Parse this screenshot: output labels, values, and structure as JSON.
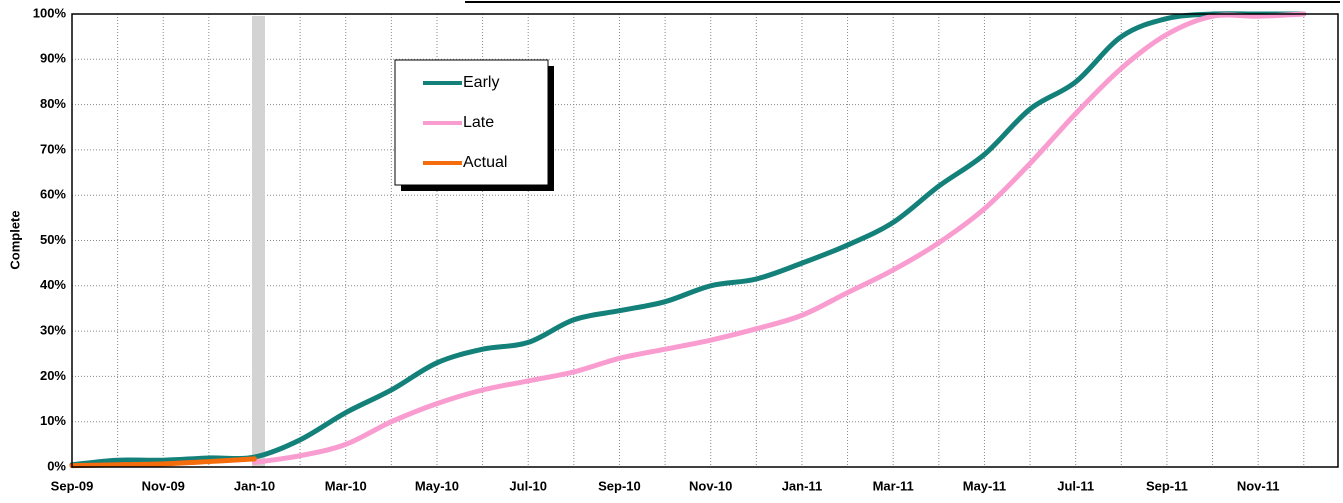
{
  "chart_data": {
    "type": "line",
    "y_label": "Complete",
    "categories": [
      "Sep-09",
      null,
      "Nov-09",
      null,
      "Jan-10",
      null,
      "Mar-10",
      null,
      "May-10",
      null,
      "Jul-10",
      null,
      "Sep-10",
      null,
      "Nov-10",
      null,
      "Jan-11",
      null,
      "Mar-11",
      null,
      "May-11",
      null,
      "Jul-11",
      null,
      "Sep-11",
      null,
      "Nov-11",
      null
    ],
    "series": [
      {
        "name": "Early",
        "color": "#138079",
        "values": [
          0.5,
          1.5,
          1.5,
          2,
          2.2,
          6,
          12,
          17,
          23,
          26,
          27.5,
          32.5,
          34.5,
          36.5,
          40,
          41.5,
          45,
          49,
          54,
          62,
          69,
          79,
          85,
          95,
          99,
          100,
          100,
          100
        ]
      },
      {
        "name": "Late",
        "color": "#f99dd0",
        "values": [
          null,
          null,
          null,
          null,
          1,
          2.5,
          5,
          10,
          14,
          17,
          19,
          21,
          24,
          26,
          28,
          30.5,
          33.5,
          38.5,
          43.5,
          49.5,
          57,
          67,
          78,
          88,
          95.5,
          99.5,
          99.5,
          100
        ]
      },
      {
        "name": "Actual",
        "color": "#f46c0c",
        "values": [
          0.3,
          0.5,
          0.7,
          1.2,
          1.8,
          null,
          null,
          null,
          null,
          null,
          null,
          null,
          null,
          null,
          null,
          null,
          null,
          null,
          null,
          null,
          null,
          null,
          null,
          null,
          null,
          null,
          null,
          null
        ]
      }
    ],
    "ylim": [
      0,
      100
    ],
    "yticks": [
      {
        "value": 0,
        "label": "0%"
      },
      {
        "value": 10,
        "label": "10%"
      },
      {
        "value": 20,
        "label": "20%"
      },
      {
        "value": 30,
        "label": "30%"
      },
      {
        "value": 40,
        "label": "40%"
      },
      {
        "value": 50,
        "label": "50%"
      },
      {
        "value": 60,
        "label": "60%"
      },
      {
        "value": 70,
        "label": "70%"
      },
      {
        "value": 80,
        "label": "80%"
      },
      {
        "value": 90,
        "label": "90%"
      },
      {
        "value": 100,
        "label": "100%"
      }
    ],
    "grid": true,
    "legend": "upper-left"
  }
}
